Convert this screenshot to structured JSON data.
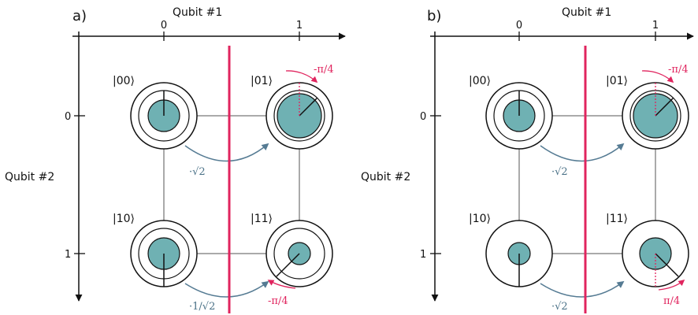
{
  "colors": {
    "fill": "#6fb1b3",
    "accent": "#e0245e",
    "arrow": "#557b93",
    "ink": "#111111"
  },
  "panels": [
    {
      "label": "a)",
      "x_axis": {
        "title": "Qubit #1",
        "ticks": [
          "0",
          "1"
        ]
      },
      "y_axis": {
        "title": "Qubit #2",
        "ticks": [
          "0",
          "1"
        ]
      },
      "states": [
        {
          "ket": "|00⟩",
          "amplitude": 0.5,
          "phase_deg": 0
        },
        {
          "ket": "|01⟩",
          "amplitude": 0.7,
          "phase_deg": -45
        },
        {
          "ket": "|10⟩",
          "amplitude": 0.5,
          "phase_deg": 0
        },
        {
          "ket": "|11⟩",
          "amplitude": 0.35,
          "phase_deg": -45
        }
      ],
      "transfers": [
        {
          "from": "|00⟩",
          "to": "|01⟩",
          "factor": "·√2"
        },
        {
          "from": "|10⟩",
          "to": "|11⟩",
          "factor": "·1/√2"
        }
      ],
      "phase_labels": [
        {
          "state": "|01⟩",
          "text": "-π/4"
        },
        {
          "state": "|11⟩",
          "text": "-π/4"
        }
      ]
    },
    {
      "label": "b)",
      "x_axis": {
        "title": "Qubit #1",
        "ticks": [
          "0",
          "1"
        ]
      },
      "y_axis": {
        "title": "Qubit #2",
        "ticks": [
          "0",
          "1"
        ]
      },
      "states": [
        {
          "ket": "|00⟩",
          "amplitude": 0.5,
          "phase_deg": 0
        },
        {
          "ket": "|01⟩",
          "amplitude": 0.7,
          "phase_deg": -45
        },
        {
          "ket": "|10⟩",
          "amplitude": 0.35,
          "phase_deg": 0
        },
        {
          "ket": "|11⟩",
          "amplitude": 0.5,
          "phase_deg": 45
        }
      ],
      "transfers": [
        {
          "from": "|00⟩",
          "to": "|01⟩",
          "factor": "·√2"
        },
        {
          "from": "|10⟩",
          "to": "|11⟩",
          "factor": "·√2"
        }
      ],
      "phase_labels": [
        {
          "state": "|01⟩",
          "text": "-π/4"
        },
        {
          "state": "|11⟩",
          "text": "π/4"
        }
      ]
    }
  ]
}
